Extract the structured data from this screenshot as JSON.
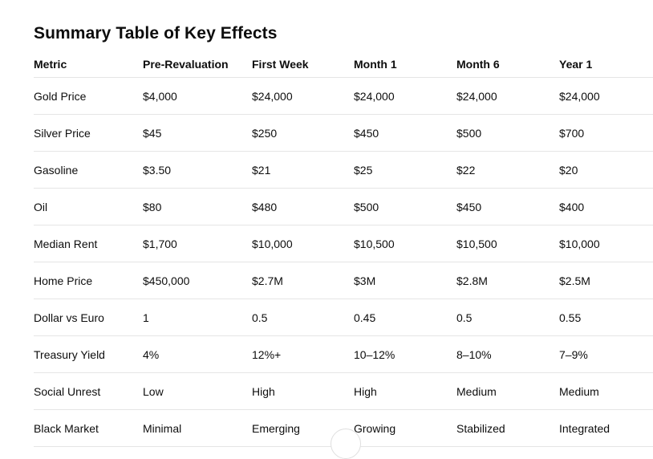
{
  "title": "Summary Table of Key Effects",
  "table": {
    "columns": [
      "Metric",
      "Pre-Revaluation",
      "First Week",
      "Month 1",
      "Month 6",
      "Year 1"
    ],
    "rows": [
      {
        "metric": "Gold Price",
        "values": [
          "$4,000",
          "$24,000",
          "$24,000",
          "$24,000",
          "$24,000"
        ]
      },
      {
        "metric": "Silver Price",
        "values": [
          "$45",
          "$250",
          "$450",
          "$500",
          "$700"
        ]
      },
      {
        "metric": "Gasoline",
        "values": [
          "$3.50",
          "$21",
          "$25",
          "$22",
          "$20"
        ]
      },
      {
        "metric": "Oil",
        "values": [
          "$80",
          "$480",
          "$500",
          "$450",
          "$400"
        ]
      },
      {
        "metric": "Median Rent",
        "values": [
          "$1,700",
          "$10,000",
          "$10,500",
          "$10,500",
          "$10,000"
        ]
      },
      {
        "metric": "Home Price",
        "values": [
          "$450,000",
          "$2.7M",
          "$3M",
          "$2.8M",
          "$2.5M"
        ]
      },
      {
        "metric": "Dollar vs Euro",
        "values": [
          "1",
          "0.5",
          "0.45",
          "0.5",
          "0.55"
        ]
      },
      {
        "metric": "Treasury Yield",
        "values": [
          "4%",
          "12%+",
          "10–12%",
          "8–10%",
          "7–9%"
        ]
      },
      {
        "metric": "Social Unrest",
        "values": [
          "Low",
          "High",
          "High",
          "Medium",
          "Medium"
        ]
      },
      {
        "metric": "Black Market",
        "values": [
          "Minimal",
          "Emerging",
          "Growing",
          "Stabilized",
          "Integrated"
        ]
      }
    ]
  },
  "colors": {
    "text": "#0d0d0d",
    "divider": "#e5e5e5",
    "background": "#ffffff"
  }
}
